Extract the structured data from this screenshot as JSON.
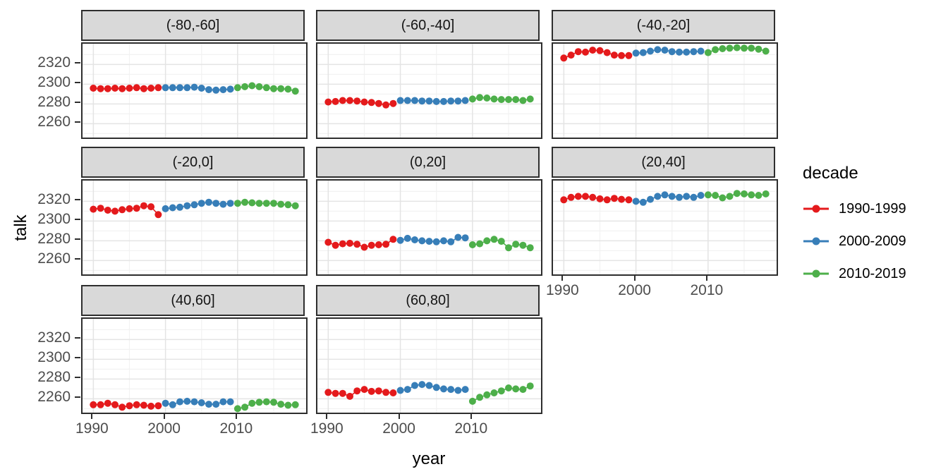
{
  "chart_data": {
    "type": "line",
    "title": "",
    "xlabel": "year",
    "ylabel": "talk",
    "x_ticks": [
      1990,
      2000,
      2010
    ],
    "y_ticks": [
      2260,
      2280,
      2300,
      2320
    ],
    "x_domain": [
      1988.5,
      2019.5
    ],
    "y_domain": [
      2246,
      2341
    ],
    "x_minor_grid": [
      1995,
      2005,
      2015
    ],
    "y_major_grid": [
      2260,
      2280,
      2300,
      2320
    ],
    "y_minor_grid": [
      2250,
      2270,
      2290,
      2310,
      2330
    ],
    "grid": "on",
    "legend_position": "right",
    "legend": {
      "title": "decade",
      "entries": [
        {
          "label": "1990-1999",
          "color": "#E41A1C",
          "start_year": 1990
        },
        {
          "label": "2000-2009",
          "color": "#377EB8",
          "start_year": 2000
        },
        {
          "label": "2010-2019",
          "color": "#4DAF4A",
          "start_year": 2010
        }
      ]
    },
    "facets": [
      {
        "label": "(-80,-60]",
        "row": 0,
        "col": 0,
        "series": [
          [
            2296,
            2295.5,
            2295.5,
            2296,
            2295.5,
            2296,
            2296.5,
            2295.5,
            2296,
            2296.5
          ],
          [
            2296.5,
            2296.5,
            2296.5,
            2296.5,
            2297,
            2296,
            2294.5,
            2294,
            2294.5,
            2295
          ],
          [
            2296.5,
            2297.5,
            2298.5,
            2297.5,
            2296.5,
            2295.5,
            2295.5,
            2295,
            2293
          ]
        ]
      },
      {
        "label": "(-60,-40]",
        "row": 0,
        "col": 1,
        "series": [
          [
            2282,
            2282.5,
            2283.5,
            2283.5,
            2283,
            2282,
            2281.5,
            2280.5,
            2279,
            2280.5
          ],
          [
            2283.5,
            2283.5,
            2283.5,
            2283,
            2283,
            2282.5,
            2282.5,
            2283,
            2283,
            2283.5
          ],
          [
            2285,
            2286.5,
            2286,
            2285,
            2284.5,
            2284.5,
            2284.5,
            2283.5,
            2285
          ]
        ]
      },
      {
        "label": "(-40,-20]",
        "row": 0,
        "col": 2,
        "series": [
          [
            2326.5,
            2329.5,
            2333,
            2332.5,
            2334.5,
            2334,
            2332,
            2329.5,
            2329,
            2329
          ],
          [
            2331.5,
            2332,
            2333.5,
            2335,
            2334.5,
            2333,
            2332.5,
            2332.5,
            2333,
            2333.5
          ],
          [
            2332,
            2335,
            2336,
            2336.5,
            2337,
            2336.5,
            2336.5,
            2335.5,
            2333.5
          ]
        ]
      },
      {
        "label": "(-20,0]",
        "row": 1,
        "col": 0,
        "series": [
          [
            2312,
            2313,
            2311,
            2310,
            2311.5,
            2312.5,
            2313,
            2315.5,
            2314.5,
            2306.5
          ],
          [
            2312.5,
            2313.5,
            2314,
            2315.5,
            2316.5,
            2318,
            2319,
            2318,
            2317,
            2318
          ],
          [
            2318,
            2319,
            2318.5,
            2318,
            2318,
            2318,
            2317,
            2316.5,
            2315.5
          ]
        ]
      },
      {
        "label": "(0,20]",
        "row": 1,
        "col": 1,
        "series": [
          [
            2278.5,
            2275.5,
            2277,
            2277.5,
            2276.5,
            2273.5,
            2275.5,
            2276,
            2276.5,
            2281.5
          ],
          [
            2280.5,
            2282.5,
            2281,
            2280,
            2279.5,
            2279,
            2280,
            2279,
            2283.5,
            2283
          ],
          [
            2276,
            2277,
            2280,
            2281.5,
            2279.5,
            2273,
            2276.5,
            2275.5,
            2273
          ]
        ]
      },
      {
        "label": "(20,40]",
        "row": 1,
        "col": 2,
        "series": [
          [
            2321.5,
            2324,
            2325,
            2325,
            2324,
            2322.5,
            2321.5,
            2323,
            2322,
            2321.5
          ],
          [
            2320,
            2319,
            2322,
            2325,
            2326.5,
            2325,
            2324,
            2325,
            2324,
            2326
          ],
          [
            2326.5,
            2326,
            2323.5,
            2325,
            2328,
            2327.5,
            2326.5,
            2326,
            2327.5
          ]
        ]
      },
      {
        "label": "(40,60]",
        "row": 2,
        "col": 0,
        "series": [
          [
            2254,
            2254,
            2255.5,
            2254,
            2251.5,
            2253,
            2254,
            2253.5,
            2252.5,
            2253
          ],
          [
            2255.5,
            2254,
            2257,
            2257.5,
            2257,
            2256,
            2254.5,
            2254.5,
            2257,
            2257
          ],
          [
            2250,
            2251.5,
            2255.5,
            2256.5,
            2257,
            2256.5,
            2254.5,
            2253.5,
            2254
          ]
        ]
      },
      {
        "label": "(60,80]",
        "row": 2,
        "col": 1,
        "series": [
          [
            2266.5,
            2265.5,
            2265.5,
            2262.5,
            2268,
            2269.5,
            2267.5,
            2268,
            2266.5,
            2266
          ],
          [
            2268.5,
            2269.5,
            2273.5,
            2274.5,
            2273.5,
            2271.5,
            2270,
            2269.5,
            2268.5,
            2269.5
          ],
          [
            2257.5,
            2261.5,
            2264,
            2266,
            2268,
            2271,
            2270,
            2269.5,
            2273
          ]
        ]
      }
    ]
  },
  "colors": {
    "strip_bg": "#D9D9D9",
    "strip_border": "#2e2e2e",
    "panel_border": "#2e2e2e",
    "grid_major": "#E4E4E4",
    "grid_minor": "#F2F2F2",
    "tick_mark": "#2e2e2e",
    "tick_label": "#4d4d4d",
    "text": "#000000",
    "background": "#ffffff"
  }
}
